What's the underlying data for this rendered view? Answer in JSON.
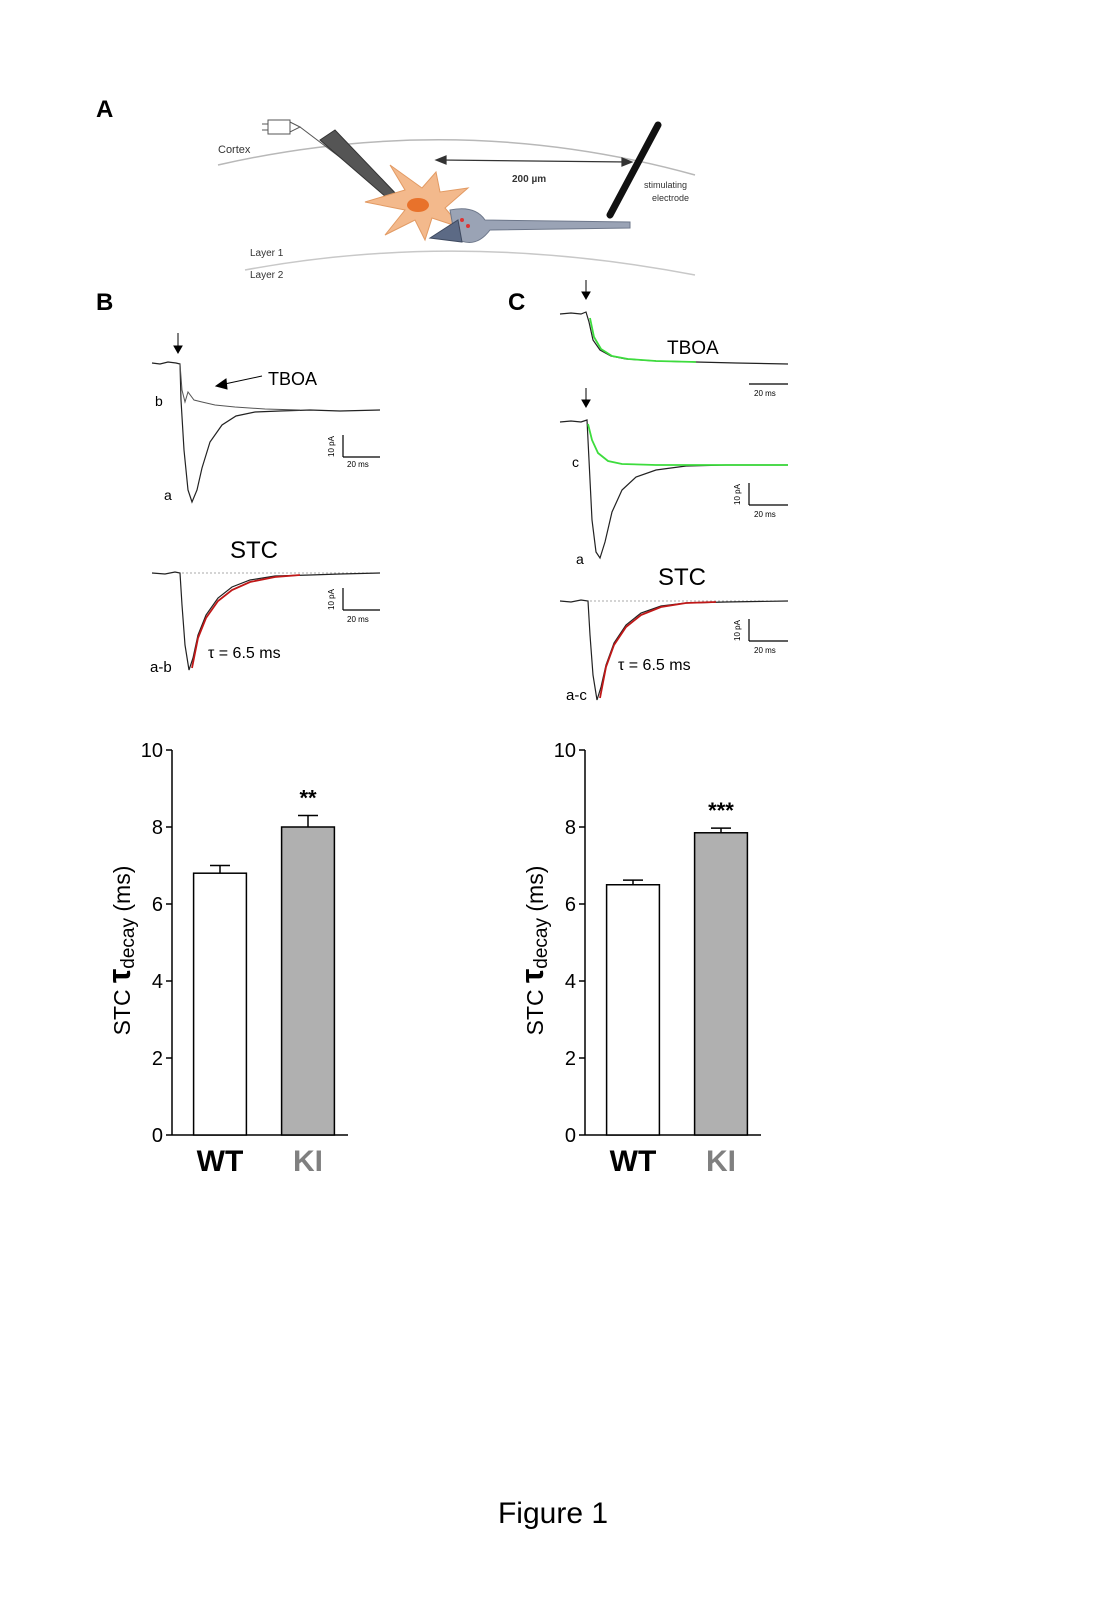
{
  "panels": {
    "a": {
      "letter": "A",
      "labels": {
        "cortex": "Cortex",
        "distance": "200 µm",
        "stim_line1": "stimulating",
        "stim_line2": "electrode",
        "layer1": "Layer 1",
        "layer2": "Layer 2"
      }
    },
    "b": {
      "letter": "B",
      "trace_top": {
        "drug": "TBOA",
        "label_b": "b",
        "label_a": "a"
      },
      "trace_stc": {
        "title": "STC",
        "label": "a-b",
        "tau": "τ = 6.5 ms"
      },
      "scalebar": {
        "y": "10 pA",
        "x": "20 ms"
      }
    },
    "c": {
      "letter": "C",
      "trace_top": {
        "drug": "TBOA"
      },
      "trace_mid": {
        "label_c": "c",
        "label_a": "a"
      },
      "trace_stc": {
        "title": "STC",
        "label": "a-c",
        "tau": "τ = 6.5 ms"
      },
      "scalebar": {
        "y": "10 pA",
        "x": "20 ms"
      }
    }
  },
  "chart_data": [
    {
      "type": "bar",
      "categories": [
        "WT",
        "KI"
      ],
      "values": [
        6.8,
        8.0
      ],
      "errors": [
        0.2,
        0.3
      ],
      "significance": "**",
      "ylabel_prefix": "STC ",
      "ylabel_symbol": "τ",
      "ylabel_sub": "decay",
      "ylabel_suffix": " (ms)",
      "ylim": [
        0,
        10
      ],
      "yticks": [
        "0",
        "2",
        "4",
        "6",
        "8",
        "10"
      ],
      "colors": [
        "#ffffff",
        "#b0b0b0"
      ],
      "label_colors": [
        "#000000",
        "#808080"
      ]
    },
    {
      "type": "bar",
      "categories": [
        "WT",
        "KI"
      ],
      "values": [
        6.5,
        7.85
      ],
      "errors": [
        0.12,
        0.12
      ],
      "significance": "***",
      "ylabel_prefix": "STC ",
      "ylabel_symbol": "τ",
      "ylabel_sub": "decay",
      "ylabel_suffix": " (ms)",
      "ylim": [
        0,
        10
      ],
      "yticks": [
        "0",
        "2",
        "4",
        "6",
        "8",
        "10"
      ],
      "colors": [
        "#ffffff",
        "#b0b0b0"
      ],
      "label_colors": [
        "#000000",
        "#808080"
      ]
    }
  ],
  "figure_caption": "Figure 1"
}
